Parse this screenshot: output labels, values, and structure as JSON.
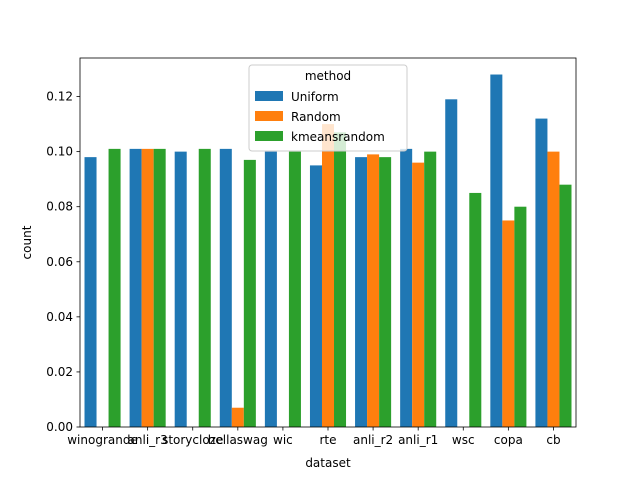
{
  "chart_data": {
    "type": "bar",
    "xlabel": "dataset",
    "ylabel": "count",
    "ylim": [
      0,
      0.134
    ],
    "yticks": [
      "0.00",
      "0.02",
      "0.04",
      "0.06",
      "0.08",
      "0.10",
      "0.12"
    ],
    "grid": false,
    "legend": {
      "title": "method",
      "placement": "upper-center"
    },
    "categories": [
      "winogrande",
      "anli_r3",
      "storycloze",
      "hellaswag",
      "wic",
      "rte",
      "anli_r2",
      "anli_r1",
      "wsc",
      "copa",
      "cb"
    ],
    "series": [
      {
        "name": "Uniform",
        "color": "#1f77b4",
        "values": [
          0.098,
          0.101,
          0.1,
          0.101,
          0.1,
          0.095,
          0.098,
          0.101,
          0.119,
          0.128,
          0.112
        ]
      },
      {
        "name": "Random",
        "color": "#ff7f0e",
        "values": [
          0.0,
          0.101,
          0.0,
          0.007,
          0.0,
          0.11,
          0.099,
          0.096,
          0.0,
          0.075,
          0.1
        ]
      },
      {
        "name": "kmeansrandom",
        "color": "#2ca02c",
        "values": [
          0.101,
          0.101,
          0.101,
          0.097,
          0.1,
          0.107,
          0.098,
          0.1,
          0.085,
          0.08,
          0.088
        ]
      }
    ]
  }
}
